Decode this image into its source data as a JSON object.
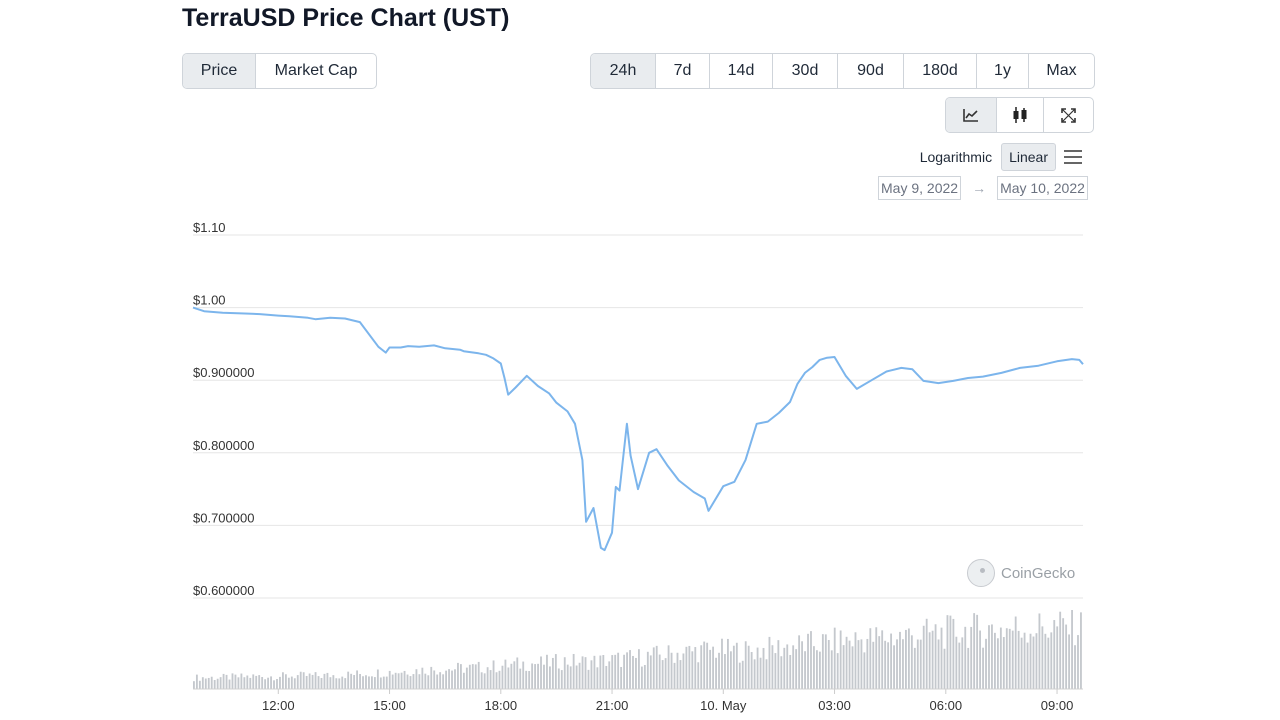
{
  "title": "TerraUSD Price Chart (UST)",
  "type_tabs": {
    "items": [
      "Price",
      "Market Cap"
    ],
    "active": "Price"
  },
  "range_tabs": {
    "items": [
      "24h",
      "7d",
      "14d",
      "30d",
      "90d",
      "180d",
      "1y",
      "Max"
    ],
    "active": "24h"
  },
  "view_tabs": {
    "icons": [
      "line-chart-icon",
      "candlestick-icon",
      "expand-icon"
    ],
    "active": "line-chart-icon"
  },
  "scale": {
    "log_label": "Logarithmic",
    "linear_label": "Linear",
    "active": "Linear"
  },
  "dates": {
    "from": "May 9, 2022",
    "to": "May 10, 2022",
    "arrow": "→"
  },
  "watermark": "CoinGecko",
  "colors": {
    "line": "#7cb5ec",
    "volume": "#c4c8cd",
    "grid": "#e6e6e6",
    "active_tab": "#e9ecef"
  },
  "chart_data": {
    "type": "line",
    "title": "",
    "xlabel": "",
    "ylabel": "",
    "ylim": [
      0.6,
      1.1
    ],
    "y_ticks": [
      "$1.10",
      "$1.00",
      "$0.900000",
      "$0.800000",
      "$0.700000",
      "$0.600000"
    ],
    "y_tick_values": [
      1.1,
      1.0,
      0.9,
      0.8,
      0.7,
      0.6
    ],
    "x_ticks": [
      "12:00",
      "15:00",
      "18:00",
      "21:00",
      "10. May",
      "03:00",
      "06:00",
      "09:00"
    ],
    "x_tick_hours": [
      12,
      15,
      18,
      21,
      24,
      27,
      30,
      33
    ],
    "x_range_hours": [
      9.7,
      33.7
    ],
    "grid": true,
    "series": [
      {
        "x": [
          9.7,
          10.0,
          10.5,
          11.0,
          11.5,
          12.0,
          12.3,
          12.8,
          13.0,
          13.4,
          13.8,
          14.2,
          14.7,
          14.9,
          15.0,
          15.3,
          15.5,
          15.8,
          16.2,
          16.5,
          16.9,
          17.0,
          17.4,
          17.6,
          17.8,
          18.0,
          18.1,
          18.2,
          18.4,
          18.7,
          19.0,
          19.3,
          19.5,
          19.8,
          20.0,
          20.2,
          20.3,
          20.5,
          20.7,
          20.8,
          21.0,
          21.1,
          21.2,
          21.4,
          21.5,
          21.7,
          22.0,
          22.2,
          22.5,
          22.8,
          23.2,
          23.5,
          23.6,
          24.0,
          24.3,
          24.6,
          24.9,
          25.2,
          25.5,
          25.8,
          26.0,
          26.2,
          26.4,
          26.6,
          26.8,
          27.0,
          27.3,
          27.6,
          28.0,
          28.4,
          28.8,
          29.1,
          29.4,
          29.8,
          30.2,
          30.6,
          31.0,
          31.5,
          32.0,
          32.5,
          33.0,
          33.4,
          33.6,
          33.7
        ],
        "values": [
          1.0,
          0.995,
          0.993,
          0.992,
          0.991,
          0.989,
          0.988,
          0.986,
          0.984,
          0.986,
          0.985,
          0.98,
          0.946,
          0.938,
          0.945,
          0.945,
          0.947,
          0.946,
          0.948,
          0.944,
          0.942,
          0.94,
          0.937,
          0.935,
          0.93,
          0.923,
          0.903,
          0.88,
          0.89,
          0.906,
          0.892,
          0.882,
          0.869,
          0.857,
          0.84,
          0.79,
          0.705,
          0.724,
          0.669,
          0.666,
          0.69,
          0.753,
          0.748,
          0.84,
          0.796,
          0.75,
          0.8,
          0.805,
          0.782,
          0.762,
          0.746,
          0.737,
          0.72,
          0.754,
          0.76,
          0.79,
          0.84,
          0.843,
          0.855,
          0.87,
          0.895,
          0.91,
          0.918,
          0.928,
          0.931,
          0.932,
          0.906,
          0.888,
          0.9,
          0.912,
          0.917,
          0.915,
          0.899,
          0.896,
          0.899,
          0.903,
          0.905,
          0.91,
          0.917,
          0.92,
          0.926,
          0.929,
          0.928,
          0.922
        ]
      }
    ],
    "volume": {
      "note": "relative volume bars, 0-1 scale",
      "values": [
        0.18,
        0.18,
        0.19,
        0.2,
        0.2,
        0.21,
        0.21,
        0.22,
        0.24,
        0.26,
        0.28,
        0.3,
        0.31,
        0.33,
        0.34,
        0.37,
        0.4,
        0.41,
        0.44,
        0.43,
        0.45,
        0.48,
        0.52,
        0.55,
        0.59,
        0.62,
        0.61,
        0.6,
        0.64,
        0.68,
        0.71,
        0.74,
        0.78,
        0.8,
        0.83,
        0.86,
        0.88,
        0.91,
        0.93,
        0.95,
        0.96,
        0.97,
        0.98,
        0.98
      ]
    }
  }
}
